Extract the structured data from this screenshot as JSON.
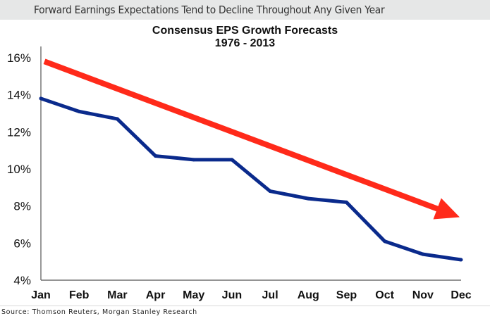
{
  "header": {
    "title": "Forward Earnings Expectations Tend to Decline Throughout Any Given Year"
  },
  "source": "Source: Thomson Reuters, Morgan Stanley Research",
  "colors": {
    "series": "#0a2a8c",
    "trend_arrow": "#ff2a1a",
    "header_bg": "#e6e7e7",
    "axis": "#555555"
  },
  "chart_data": {
    "type": "line",
    "title": "Consensus EPS Growth Forecasts",
    "subtitle": "1976 - 2013",
    "xlabel": "",
    "ylabel": "",
    "categories": [
      "Jan",
      "Feb",
      "Mar",
      "Apr",
      "May",
      "Jun",
      "Jul",
      "Aug",
      "Sep",
      "Oct",
      "Nov",
      "Dec"
    ],
    "series": [
      {
        "name": "Consensus EPS Growth Forecast",
        "values": [
          13.8,
          13.1,
          12.7,
          10.7,
          10.5,
          10.5,
          8.8,
          8.4,
          8.2,
          6.1,
          5.4,
          5.1
        ]
      }
    ],
    "annotations": [
      {
        "type": "trend-arrow",
        "from": {
          "x": "Jan",
          "y": 15.8
        },
        "to": {
          "x": "Dec",
          "y": 7.4
        },
        "meaning": "downward trend"
      }
    ],
    "yticks": [
      "4%",
      "6%",
      "8%",
      "10%",
      "12%",
      "14%",
      "16%"
    ],
    "ytick_values": [
      4,
      6,
      8,
      10,
      12,
      14,
      16
    ],
    "ylim": [
      4,
      16
    ],
    "grid": false,
    "legend": "none"
  }
}
